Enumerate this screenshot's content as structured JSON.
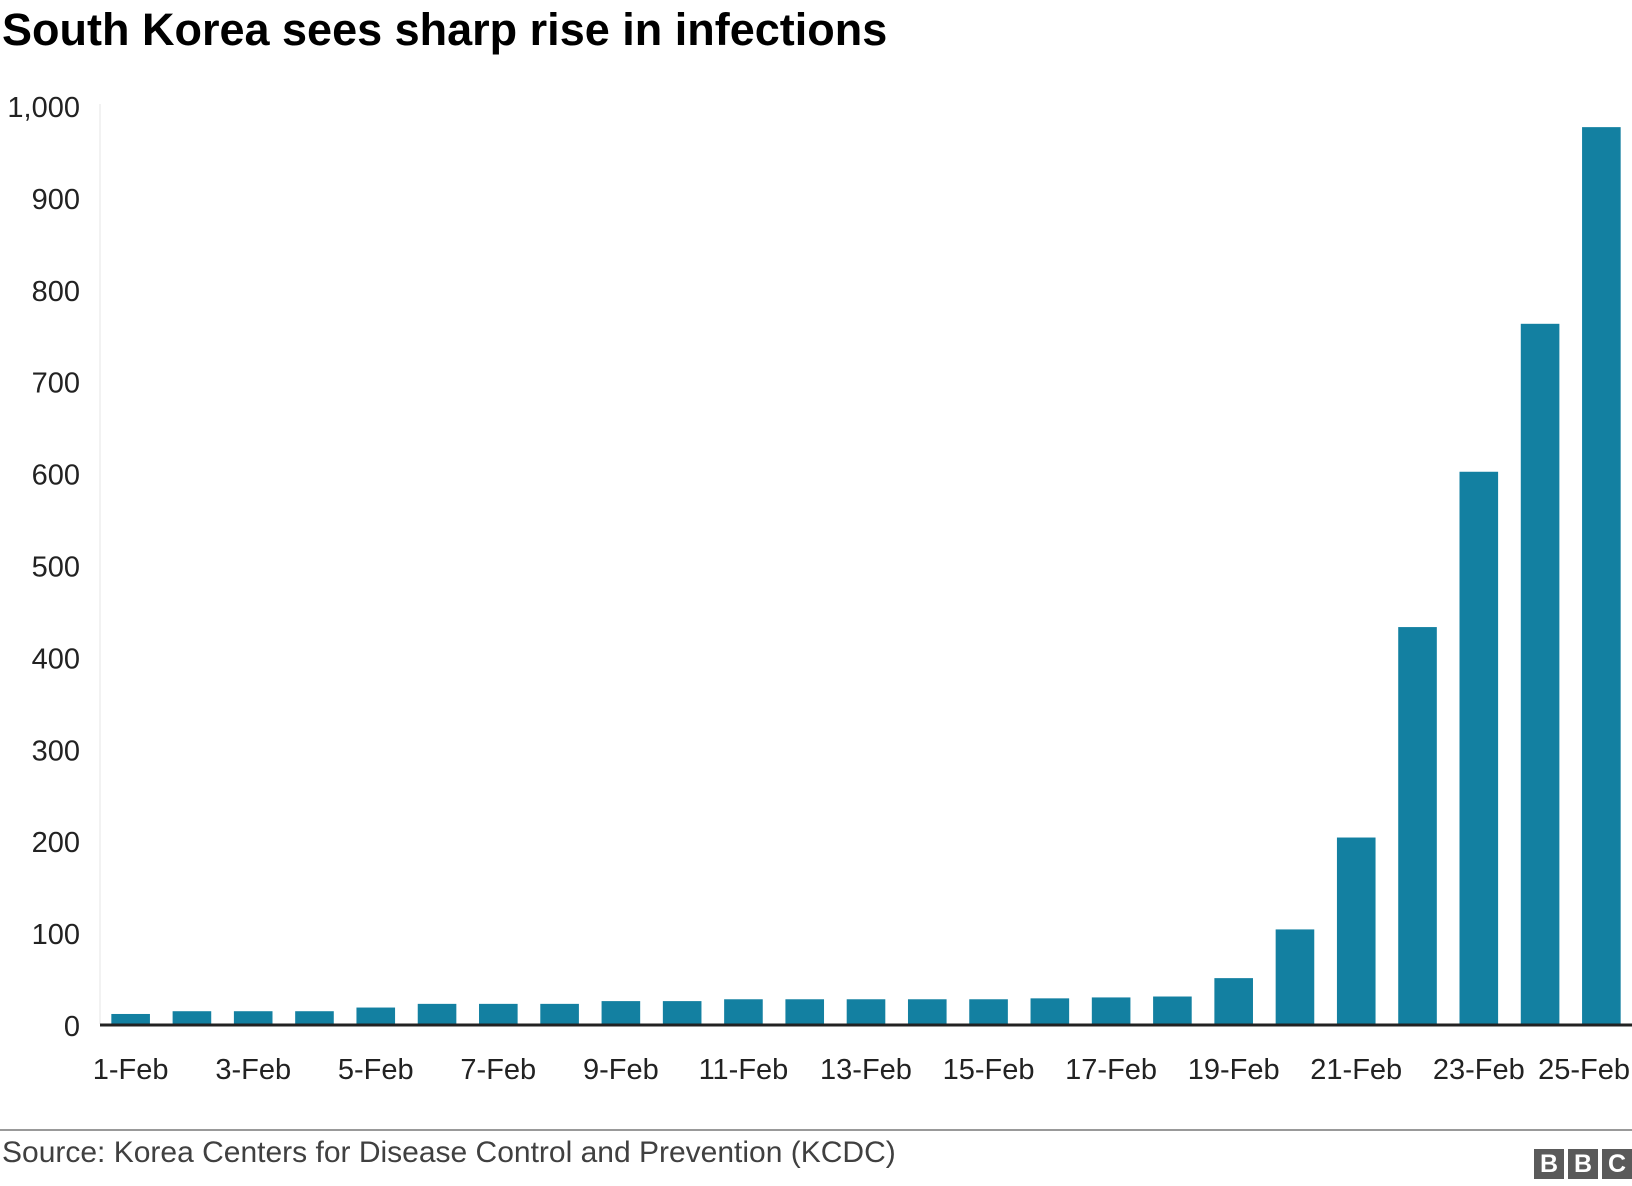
{
  "title": "South Korea sees sharp rise in infections",
  "source": "Source: Korea Centers for Disease Control and Prevention (KCDC)",
  "logo": [
    "B",
    "B",
    "C"
  ],
  "colors": {
    "bar": "#1380a1",
    "axis": "#222222",
    "text": "#222222"
  },
  "chart_data": {
    "type": "bar",
    "title": "South Korea sees sharp rise in infections",
    "xlabel": "",
    "ylabel": "",
    "ylim": [
      0,
      1000
    ],
    "yticks": [
      0,
      100,
      200,
      300,
      400,
      500,
      600,
      700,
      800,
      900,
      1000
    ],
    "ytick_labels": [
      "0",
      "100",
      "200",
      "300",
      "400",
      "500",
      "600",
      "700",
      "800",
      "900",
      "1,000"
    ],
    "grid": false,
    "legend": "none",
    "categories": [
      "1-Feb",
      "2-Feb",
      "3-Feb",
      "4-Feb",
      "5-Feb",
      "6-Feb",
      "7-Feb",
      "8-Feb",
      "9-Feb",
      "10-Feb",
      "11-Feb",
      "12-Feb",
      "13-Feb",
      "14-Feb",
      "15-Feb",
      "16-Feb",
      "17-Feb",
      "18-Feb",
      "19-Feb",
      "20-Feb",
      "21-Feb",
      "22-Feb",
      "23-Feb",
      "24-Feb",
      "25-Feb"
    ],
    "xtick_labels": [
      "1-Feb",
      "",
      "3-Feb",
      "",
      "5-Feb",
      "",
      "7-Feb",
      "",
      "9-Feb",
      "",
      "11-Feb",
      "",
      "13-Feb",
      "",
      "15-Feb",
      "",
      "17-Feb",
      "",
      "19-Feb",
      "",
      "21-Feb",
      "",
      "23-Feb",
      "",
      "25-Feb"
    ],
    "values": [
      12,
      15,
      15,
      15,
      19,
      23,
      23,
      23,
      26,
      26,
      28,
      28,
      28,
      28,
      28,
      29,
      30,
      31,
      51,
      104,
      204,
      433,
      602,
      763,
      977
    ]
  }
}
